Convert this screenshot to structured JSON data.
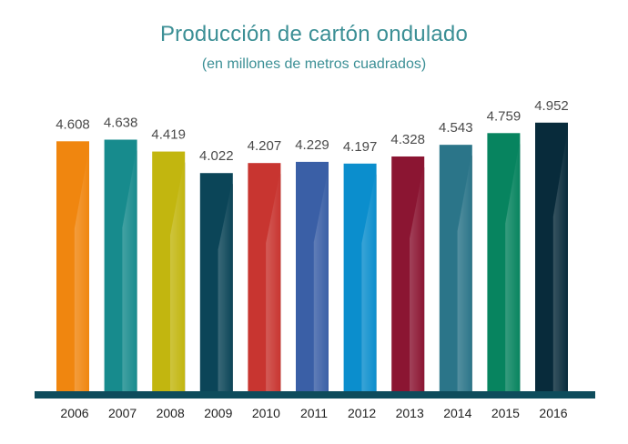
{
  "chart_data": {
    "type": "bar",
    "title": "Producción de cartón ondulado",
    "subtitle": "(en millones de metros cuadrados)",
    "xlabel": "",
    "ylabel": "",
    "categories": [
      "2006",
      "2007",
      "2008",
      "2009",
      "2010",
      "2011",
      "2012",
      "2013",
      "2014",
      "2015",
      "2016"
    ],
    "values": [
      4608,
      4638,
      4419,
      4022,
      4207,
      4229,
      4197,
      4328,
      4543,
      4759,
      4952
    ],
    "value_labels": [
      "4.608",
      "4.638",
      "4.419",
      "4.022",
      "4.207",
      "4.229",
      "4.197",
      "4.328",
      "4.543",
      "4.759",
      "4.952"
    ],
    "ylim": [
      0,
      5200
    ],
    "grid": false,
    "legend": "none",
    "colors": [
      "#f0860f",
      "#178b8d",
      "#c2b60f",
      "#0b4558",
      "#c83530",
      "#3a5fa6",
      "#0b8ecd",
      "#8b1532",
      "#2b7589",
      "#07845f",
      "#082b3b"
    ],
    "shadow_color": "#5a5a5a",
    "baseline_color": "#0e4c5c"
  }
}
